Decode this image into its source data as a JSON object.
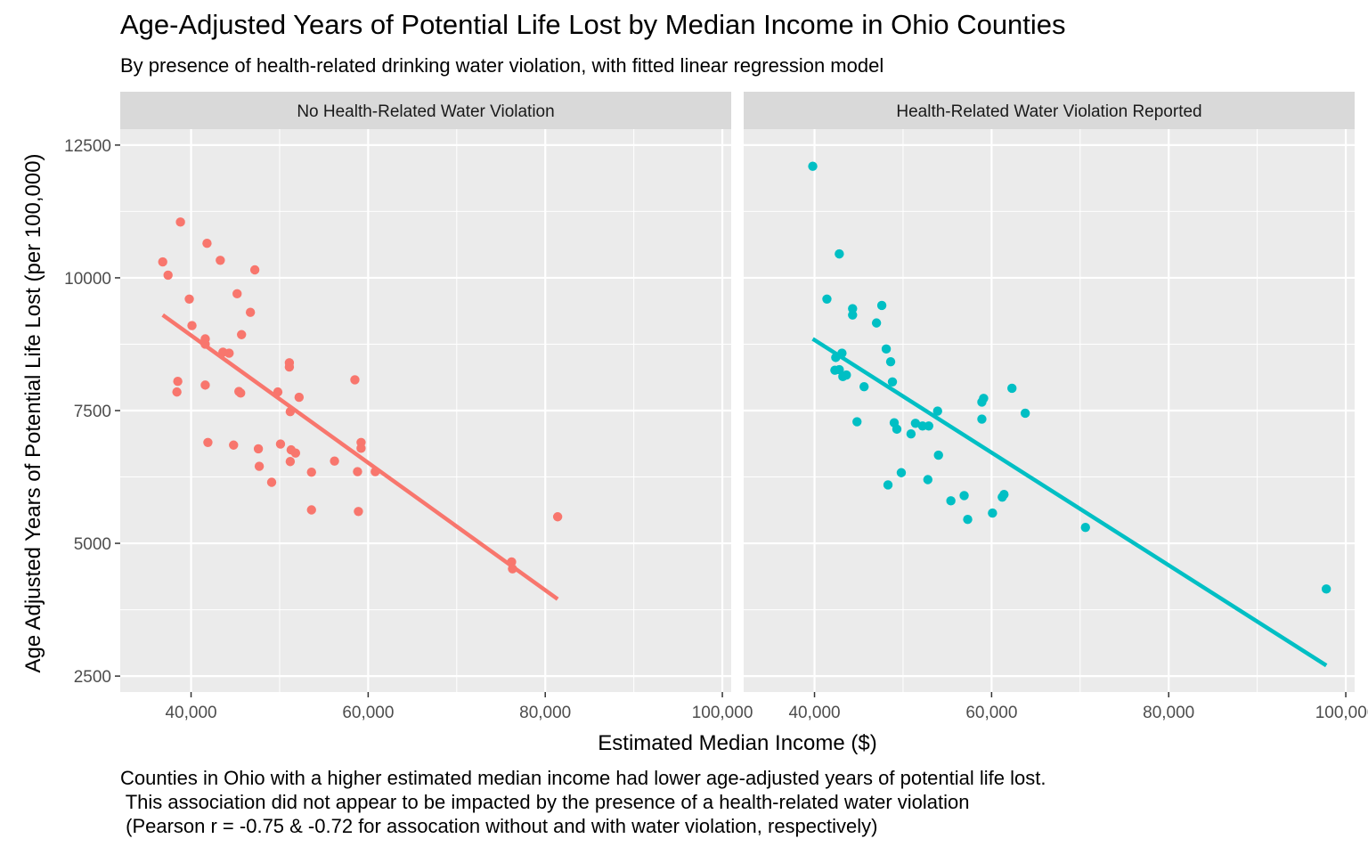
{
  "chart_data": {
    "type": "scatter",
    "title": "Age-Adjusted Years of Potential Life Lost by Median Income in Ohio Counties",
    "subtitle": "By presence of health-related drinking water violation, with fitted linear regression model",
    "xlabel": "Estimated Median Income ($)",
    "ylabel": "Age Adjusted Years of Potential Life Lost (per 100,000)",
    "caption": "Counties in Ohio with a higher estimated median income had lower age-adjusted years of potential life lost.\n This association did not appear to be impacted by the presence of a health-related water violation\n (Pearson r = -0.75 & -0.72 for assocation without and with water violation, respectively)",
    "xlim": [
      32000,
      101000
    ],
    "ylim": [
      2200,
      12800
    ],
    "x_ticks": [
      40000,
      60000,
      80000,
      100000
    ],
    "x_tick_labels": [
      "40,000",
      "60,000",
      "80,000",
      "100,000"
    ],
    "y_ticks": [
      2500,
      5000,
      7500,
      10000,
      12500
    ],
    "y_tick_labels": [
      "2500",
      "5000",
      "7500",
      "10000",
      "12500"
    ],
    "grid": true,
    "legend": "none",
    "facets": [
      {
        "label": "No Health-Related Water Violation",
        "color": "#f8766d",
        "points": [
          [
            36800,
            10300
          ],
          [
            37400,
            10050
          ],
          [
            38800,
            11050
          ],
          [
            38500,
            8050
          ],
          [
            38400,
            7850
          ],
          [
            39800,
            9600
          ],
          [
            40100,
            9100
          ],
          [
            41600,
            8850
          ],
          [
            41600,
            8750
          ],
          [
            41600,
            7980
          ],
          [
            41800,
            10650
          ],
          [
            41900,
            6900
          ],
          [
            43300,
            10330
          ],
          [
            43600,
            8600
          ],
          [
            44300,
            8580
          ],
          [
            44800,
            6850
          ],
          [
            45200,
            9700
          ],
          [
            45400,
            7860
          ],
          [
            45600,
            7830
          ],
          [
            45700,
            8930
          ],
          [
            46700,
            9350
          ],
          [
            47200,
            10150
          ],
          [
            47600,
            6780
          ],
          [
            47700,
            6450
          ],
          [
            49100,
            6150
          ],
          [
            49800,
            7850
          ],
          [
            50100,
            6870
          ],
          [
            51100,
            8400
          ],
          [
            51100,
            8320
          ],
          [
            51200,
            7480
          ],
          [
            51200,
            6540
          ],
          [
            51300,
            6760
          ],
          [
            51800,
            6700
          ],
          [
            52200,
            7750
          ],
          [
            53600,
            6340
          ],
          [
            53600,
            5630
          ],
          [
            56200,
            6550
          ],
          [
            58500,
            8080
          ],
          [
            58800,
            6350
          ],
          [
            58900,
            5600
          ],
          [
            59200,
            6900
          ],
          [
            59200,
            6790
          ],
          [
            60800,
            6350
          ],
          [
            76200,
            4650
          ],
          [
            76300,
            4520
          ],
          [
            81400,
            5500
          ]
        ],
        "fit": {
          "x": [
            36800,
            81400
          ],
          "y": [
            9300,
            3950
          ]
        }
      },
      {
        "label": "Health-Related Water Violation Reported",
        "color": "#00bfc4",
        "points": [
          [
            39800,
            12100
          ],
          [
            41400,
            9600
          ],
          [
            42400,
            8500
          ],
          [
            42300,
            8260
          ],
          [
            42800,
            8270
          ],
          [
            42800,
            10450
          ],
          [
            43100,
            8580
          ],
          [
            43200,
            8140
          ],
          [
            43600,
            8170
          ],
          [
            44300,
            9420
          ],
          [
            44300,
            9300
          ],
          [
            44800,
            7290
          ],
          [
            45600,
            7950
          ],
          [
            47000,
            9150
          ],
          [
            47600,
            9480
          ],
          [
            48100,
            8660
          ],
          [
            48300,
            6100
          ],
          [
            48600,
            8420
          ],
          [
            48800,
            8040
          ],
          [
            49000,
            7270
          ],
          [
            49300,
            7150
          ],
          [
            49800,
            6330
          ],
          [
            50900,
            7060
          ],
          [
            51400,
            7260
          ],
          [
            52200,
            7210
          ],
          [
            52800,
            6200
          ],
          [
            52900,
            7210
          ],
          [
            53900,
            7490
          ],
          [
            54000,
            6660
          ],
          [
            55400,
            5800
          ],
          [
            56900,
            5900
          ],
          [
            57300,
            5450
          ],
          [
            58900,
            7340
          ],
          [
            58900,
            7660
          ],
          [
            59100,
            7730
          ],
          [
            60100,
            5570
          ],
          [
            61200,
            5870
          ],
          [
            61400,
            5920
          ],
          [
            62300,
            7920
          ],
          [
            63800,
            7450
          ],
          [
            70600,
            5300
          ],
          [
            97800,
            4140
          ]
        ],
        "fit": {
          "x": [
            39800,
            97800
          ],
          "y": [
            8850,
            2700
          ]
        }
      }
    ]
  }
}
